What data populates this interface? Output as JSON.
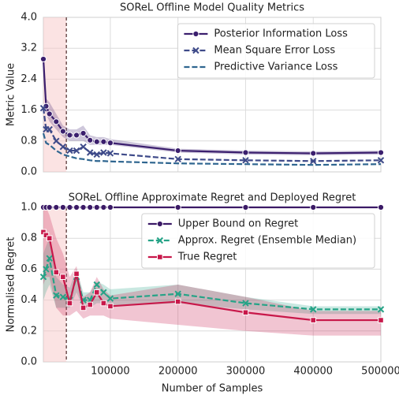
{
  "chart_data": [
    {
      "type": "line",
      "title": "SOReL Offline Model Quality Metrics",
      "y_label": "Metric Value",
      "x": [
        1000,
        5000,
        10000,
        20000,
        30000,
        40000,
        50000,
        60000,
        70000,
        80000,
        90000,
        100000,
        200000,
        300000,
        400000,
        500000
      ],
      "xlim": [
        1000,
        500000
      ],
      "xticks": [
        100000,
        200000,
        300000,
        400000,
        500000
      ],
      "ylim": [
        0,
        4
      ],
      "yticks": [
        {
          "value": 0,
          "label": "0.0"
        },
        {
          "value": 0.8,
          "label": "0.8"
        },
        {
          "value": 1.6,
          "label": "1.6"
        },
        {
          "value": 2.4,
          "label": "2.4"
        },
        {
          "value": 3.2,
          "label": "3.2"
        },
        {
          "value": 4,
          "label": "4.0"
        }
      ],
      "grid": true,
      "legend": "upper right",
      "vline": 35000,
      "span": [
        1000,
        35000
      ],
      "series": [
        {
          "name": "Posterior Information Loss",
          "color": "#3b1f6e",
          "marker": "o",
          "style": "solid",
          "values": [
            2.92,
            1.7,
            1.5,
            1.3,
            1.05,
            0.95,
            0.95,
            1.0,
            0.82,
            0.78,
            0.78,
            0.75,
            0.55,
            0.5,
            0.48,
            0.5
          ],
          "lower": [
            2.6,
            1.5,
            1.3,
            1.1,
            0.9,
            0.8,
            0.8,
            0.8,
            0.7,
            0.7,
            0.7,
            0.7,
            0.5,
            0.45,
            0.43,
            0.45
          ],
          "upper": [
            3.2,
            1.9,
            1.8,
            1.5,
            1.2,
            1.1,
            1.1,
            1.2,
            0.95,
            0.9,
            0.9,
            0.85,
            0.6,
            0.55,
            0.53,
            0.55
          ]
        },
        {
          "name": "Mean Square Error Loss",
          "color": "#3e4a89",
          "marker": "x",
          "style": "dashed",
          "values": [
            1.65,
            1.1,
            1.1,
            0.8,
            0.65,
            0.55,
            0.55,
            0.65,
            0.5,
            0.45,
            0.5,
            0.48,
            0.33,
            0.3,
            0.28,
            0.3
          ]
        },
        {
          "name": "Predictive Variance Loss",
          "color": "#2f6690",
          "marker": "none",
          "style": "dashed",
          "values": [
            1.0,
            0.75,
            0.7,
            0.55,
            0.45,
            0.4,
            0.35,
            0.33,
            0.3,
            0.28,
            0.28,
            0.27,
            0.22,
            0.2,
            0.18,
            0.2
          ]
        }
      ]
    },
    {
      "type": "line",
      "title": "SOReL Offline Approximate Regret and Deployed Regret",
      "y_label": "Normalised Regret",
      "x_label": "Number of Samples",
      "x": [
        1000,
        5000,
        10000,
        20000,
        30000,
        40000,
        50000,
        60000,
        70000,
        80000,
        90000,
        100000,
        200000,
        300000,
        400000,
        500000
      ],
      "xlim": [
        1000,
        500000
      ],
      "xticks": [
        100000,
        200000,
        300000,
        400000,
        500000
      ],
      "ylim": [
        0,
        1
      ],
      "yticks": [
        {
          "value": 0,
          "label": "0.0"
        },
        {
          "value": 0.2,
          "label": "0.2"
        },
        {
          "value": 0.4,
          "label": "0.4"
        },
        {
          "value": 0.6,
          "label": "0.6"
        },
        {
          "value": 0.8,
          "label": "0.8"
        },
        {
          "value": 1,
          "label": "1.0"
        }
      ],
      "grid": true,
      "legend": "upper right",
      "vline": 35000,
      "span": [
        1000,
        35000
      ],
      "series": [
        {
          "name": "Upper Bound on Regret",
          "color": "#3b1a66",
          "marker": "o",
          "style": "solid",
          "values": [
            1,
            1,
            1,
            1,
            1,
            1,
            1,
            1,
            1,
            1,
            1,
            1,
            1,
            1,
            1,
            1
          ]
        },
        {
          "name": "Approx. Regret (Ensemble Median)",
          "color": "#26a387",
          "marker": "x",
          "style": "dashed",
          "values": [
            0.55,
            0.6,
            0.67,
            0.43,
            0.42,
            0.4,
            0.55,
            0.4,
            0.4,
            0.5,
            0.45,
            0.41,
            0.44,
            0.38,
            0.34,
            0.34
          ],
          "lower": [
            0.4,
            0.45,
            0.5,
            0.35,
            0.35,
            0.35,
            0.45,
            0.35,
            0.35,
            0.38,
            0.38,
            0.36,
            0.38,
            0.34,
            0.31,
            0.31
          ],
          "upper": [
            0.7,
            0.75,
            0.8,
            0.55,
            0.5,
            0.48,
            0.6,
            0.45,
            0.45,
            0.52,
            0.5,
            0.47,
            0.5,
            0.42,
            0.36,
            0.36
          ]
        },
        {
          "name": "True Regret",
          "color": "#c8184a",
          "marker": "s",
          "style": "solid",
          "values": [
            0.84,
            0.82,
            0.8,
            0.58,
            0.55,
            0.38,
            0.57,
            0.35,
            0.37,
            0.45,
            0.38,
            0.36,
            0.39,
            0.32,
            0.27,
            0.27
          ],
          "lower": [
            0.5,
            0.55,
            0.55,
            0.35,
            0.3,
            0.3,
            0.33,
            0.28,
            0.3,
            0.3,
            0.3,
            0.28,
            0.24,
            0.2,
            0.17,
            0.17
          ],
          "upper": [
            1.0,
            1.0,
            0.95,
            0.8,
            0.7,
            0.55,
            0.62,
            0.42,
            0.45,
            0.55,
            0.47,
            0.43,
            0.5,
            0.42,
            0.33,
            0.33
          ]
        }
      ]
    }
  ]
}
